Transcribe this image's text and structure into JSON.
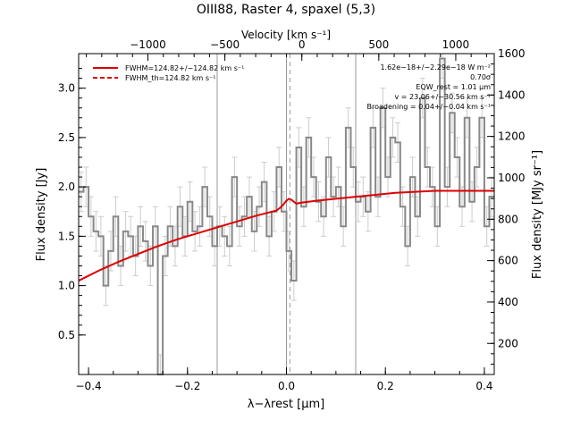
{
  "chart_data": {
    "type": "line",
    "title": "OIII88, Raster 4, spaxel (5,3)",
    "xlabel": "λ−λrest [µm]",
    "ylabel": "Flux density [Jy]",
    "top_axis_label": "Velocity [km s⁻¹]",
    "right_axis_label": "Flux density [MJy sr⁻¹]",
    "xlim": [
      -0.42,
      0.42
    ],
    "ylim": [
      0.1,
      3.35
    ],
    "top_xlim": [
      -1450,
      1250
    ],
    "right_ylim": [
      50,
      1600
    ],
    "x_ticks": [
      {
        "v": -0.4,
        "l": "−0.4"
      },
      {
        "v": -0.2,
        "l": "−0.2"
      },
      {
        "v": 0.0,
        "l": "0.0"
      },
      {
        "v": 0.2,
        "l": "0.2"
      },
      {
        "v": 0.4,
        "l": "0.4"
      }
    ],
    "y_ticks": [
      {
        "v": 0.5,
        "l": "0.5"
      },
      {
        "v": 1.0,
        "l": "1.0"
      },
      {
        "v": 1.5,
        "l": "1.5"
      },
      {
        "v": 2.0,
        "l": "2.0"
      },
      {
        "v": 2.5,
        "l": "2.5"
      },
      {
        "v": 3.0,
        "l": "3.0"
      }
    ],
    "top_ticks": [
      {
        "v": -1000,
        "l": "−1000"
      },
      {
        "v": -500,
        "l": "−500"
      },
      {
        "v": 0,
        "l": "0"
      },
      {
        "v": 500,
        "l": "500"
      },
      {
        "v": 1000,
        "l": "1000"
      }
    ],
    "right_ticks": [
      {
        "v": 200,
        "l": "200"
      },
      {
        "v": 400,
        "l": "400"
      },
      {
        "v": 600,
        "l": "600"
      },
      {
        "v": 800,
        "l": "800"
      },
      {
        "v": 1000,
        "l": "1000"
      },
      {
        "v": 1200,
        "l": "1200"
      },
      {
        "v": 1400,
        "l": "1400"
      },
      {
        "v": 1600,
        "l": "1600"
      }
    ],
    "vertical_lines": [
      {
        "x": -0.14,
        "style": "solid",
        "color": "#999999"
      },
      {
        "x": 0.14,
        "style": "solid",
        "color": "#999999"
      },
      {
        "x": 0.0,
        "style": "solid",
        "color": "#999999"
      },
      {
        "x": 0.007,
        "style": "dashed",
        "color": "#999999"
      }
    ],
    "spectrum": {
      "color": "#888888",
      "x": [
        -0.42,
        -0.41,
        -0.4,
        -0.39,
        -0.38,
        -0.37,
        -0.36,
        -0.35,
        -0.34,
        -0.33,
        -0.32,
        -0.31,
        -0.3,
        -0.29,
        -0.28,
        -0.27,
        -0.26,
        -0.25,
        -0.24,
        -0.23,
        -0.22,
        -0.21,
        -0.2,
        -0.19,
        -0.18,
        -0.17,
        -0.16,
        -0.15,
        -0.14,
        -0.13,
        -0.12,
        -0.11,
        -0.1,
        -0.09,
        -0.08,
        -0.07,
        -0.06,
        -0.05,
        -0.04,
        -0.03,
        -0.02,
        -0.01,
        0.0,
        0.01,
        0.02,
        0.03,
        0.04,
        0.05,
        0.06,
        0.07,
        0.08,
        0.09,
        0.1,
        0.11,
        0.12,
        0.13,
        0.14,
        0.15,
        0.16,
        0.17,
        0.18,
        0.19,
        0.2,
        0.21,
        0.22,
        0.23,
        0.24,
        0.25,
        0.26,
        0.27,
        0.28,
        0.29,
        0.3,
        0.31,
        0.32,
        0.33,
        0.34,
        0.35,
        0.36,
        0.37,
        0.38,
        0.39,
        0.4,
        0.41
      ],
      "y": [
        1.95,
        2.0,
        1.7,
        1.55,
        1.5,
        1.0,
        1.35,
        1.7,
        1.2,
        1.55,
        1.5,
        1.3,
        1.6,
        1.45,
        1.2,
        1.6,
        0.1,
        1.3,
        1.6,
        1.4,
        1.8,
        1.5,
        1.85,
        1.55,
        1.6,
        2.0,
        1.7,
        1.4,
        1.6,
        1.5,
        1.4,
        2.1,
        1.6,
        1.7,
        1.9,
        1.55,
        1.8,
        2.05,
        1.5,
        1.75,
        2.2,
        1.75,
        1.35,
        1.05,
        2.4,
        1.8,
        2.5,
        2.1,
        1.85,
        1.7,
        2.3,
        1.9,
        2.0,
        1.6,
        2.6,
        2.2,
        1.85,
        1.9,
        1.75,
        2.6,
        1.9,
        2.8,
        2.1,
        2.5,
        2.45,
        1.8,
        1.4,
        2.1,
        1.7,
        2.9,
        2.2,
        2.0,
        1.6,
        3.3,
        2.0,
        2.75,
        2.3,
        1.8,
        2.7,
        1.85,
        2.2,
        2.7,
        1.6,
        1.9
      ],
      "err": 0.2
    },
    "series": [
      {
        "name": "FWHM=124.82+/−124.82 km s⁻¹",
        "style": "solid",
        "color": "#dd0000",
        "x": [
          -0.42,
          -0.38,
          -0.34,
          -0.3,
          -0.26,
          -0.22,
          -0.18,
          -0.14,
          -0.1,
          -0.06,
          -0.02,
          -0.01,
          0.0,
          0.005,
          0.01,
          0.02,
          0.03,
          0.06,
          0.1,
          0.14,
          0.18,
          0.22,
          0.26,
          0.3,
          0.34,
          0.38,
          0.42
        ],
        "y": [
          1.05,
          1.15,
          1.24,
          1.32,
          1.4,
          1.47,
          1.53,
          1.59,
          1.65,
          1.71,
          1.76,
          1.8,
          1.86,
          1.88,
          1.87,
          1.83,
          1.84,
          1.86,
          1.88,
          1.9,
          1.92,
          1.94,
          1.95,
          1.96,
          1.96,
          1.96,
          1.96
        ]
      },
      {
        "name": "FWHM_th=124.82 km s⁻¹",
        "style": "dashed",
        "color": "#dd0000",
        "x": [],
        "y": []
      }
    ],
    "annotations": [
      "1.62e−18+/−2.29e−18 W m⁻²",
      "0.70σ",
      "EQW_rest = 1.01 µm",
      "v = 23.06+/−30.56 km s⁻¹",
      "Broadening = 0.04+/−0.04 km s⁻¹"
    ]
  }
}
